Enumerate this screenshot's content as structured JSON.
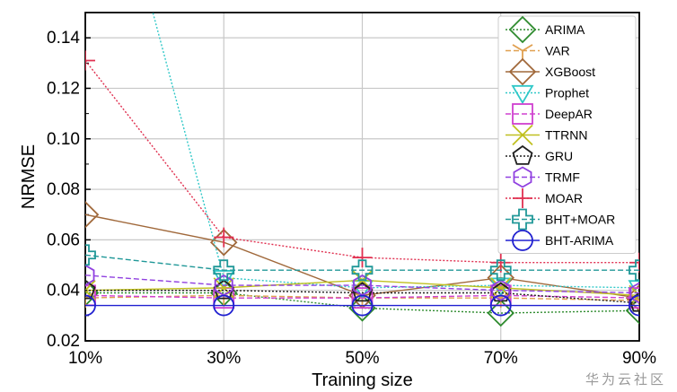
{
  "chart_data": {
    "type": "line",
    "title": "",
    "xlabel": "Training size",
    "ylabel": "NRMSE",
    "x": [
      "10%",
      "30%",
      "50%",
      "70%",
      "90%"
    ],
    "ylim": [
      0.02,
      0.15
    ],
    "yticks": [
      "0.02",
      "0.04",
      "0.06",
      "0.08",
      "0.10",
      "0.12",
      "0.14"
    ],
    "grid": true,
    "legend_position": "top-right",
    "series": [
      {
        "name": "ARIMA",
        "color": "#2e8b2e",
        "marker": "diamond",
        "dash": "2,2",
        "values": [
          0.039,
          0.039,
          0.033,
          0.031,
          0.032
        ]
      },
      {
        "name": "VAR",
        "color": "#e0a050",
        "marker": "tri-star",
        "dash": "6,3",
        "values": [
          0.037,
          0.038,
          0.037,
          0.037,
          0.036
        ]
      },
      {
        "name": "XGBoost",
        "color": "#a0683a",
        "marker": "diamond",
        "dash": "",
        "values": [
          0.07,
          0.059,
          0.038,
          0.045,
          0.037
        ]
      },
      {
        "name": "Prophet",
        "color": "#30c8c8",
        "marker": "triangle-down",
        "dash": "2,2",
        "values": [
          0.25,
          0.045,
          0.041,
          0.042,
          0.041
        ]
      },
      {
        "name": "DeepAR",
        "color": "#d040d0",
        "marker": "square",
        "dash": "6,3",
        "values": [
          0.038,
          0.037,
          0.037,
          0.038,
          0.037
        ]
      },
      {
        "name": "TTRNN",
        "color": "#c0c020",
        "marker": "x",
        "dash": "",
        "values": [
          0.04,
          0.041,
          0.044,
          0.041,
          0.038
        ]
      },
      {
        "name": "GRU",
        "color": "#202020",
        "marker": "pentagon",
        "dash": "2,2",
        "values": [
          0.04,
          0.04,
          0.039,
          0.039,
          0.035
        ]
      },
      {
        "name": "TRMF",
        "color": "#9040e0",
        "marker": "hexagon",
        "dash": "6,3",
        "values": [
          0.046,
          0.042,
          0.042,
          0.04,
          0.039
        ]
      },
      {
        "name": "MOAR",
        "color": "#e03050",
        "marker": "plus",
        "dash": "2,2",
        "values": [
          0.131,
          0.061,
          0.053,
          0.051,
          0.051
        ]
      },
      {
        "name": "BHT+MOAR",
        "color": "#209898",
        "marker": "cross",
        "dash": "6,3",
        "values": [
          0.054,
          0.048,
          0.048,
          0.048,
          0.048
        ]
      },
      {
        "name": "BHT-ARIMA",
        "color": "#2020d0",
        "marker": "circle",
        "dash": "",
        "values": [
          0.034,
          0.034,
          0.034,
          0.034,
          0.034
        ]
      }
    ]
  },
  "watermark": "华为云社区"
}
